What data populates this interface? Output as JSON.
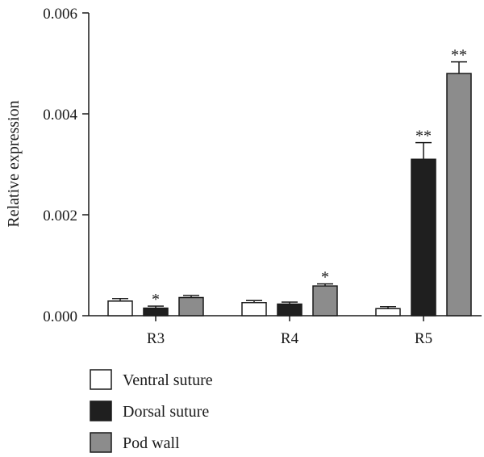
{
  "chart_data": {
    "type": "bar",
    "title": "",
    "xlabel": "",
    "ylabel": "Relative expression",
    "ylim": [
      0,
      0.006
    ],
    "yticks": [
      "0.000",
      "0.002",
      "0.004",
      "0.006"
    ],
    "grid": false,
    "legend_position": "bottom-left",
    "categories": [
      "R3",
      "R4",
      "R5"
    ],
    "series": [
      {
        "name": "Ventral suture",
        "color": "#ffffff",
        "values": [
          0.00029,
          0.00026,
          0.00014
        ],
        "errors": [
          5e-05,
          4e-05,
          4e-05
        ],
        "significance": [
          "",
          "",
          ""
        ]
      },
      {
        "name": "Dorsal suture",
        "color": "#1f1f1f",
        "values": [
          0.00015,
          0.00023,
          0.0031
        ],
        "errors": [
          4e-05,
          4e-05,
          0.00033
        ],
        "significance": [
          "*",
          "",
          "**"
        ]
      },
      {
        "name": "Pod wall",
        "color": "#8c8c8c",
        "values": [
          0.00036,
          0.00059,
          0.0048
        ],
        "errors": [
          4e-05,
          4e-05,
          0.00023
        ],
        "significance": [
          "",
          "*",
          "**"
        ]
      }
    ]
  }
}
